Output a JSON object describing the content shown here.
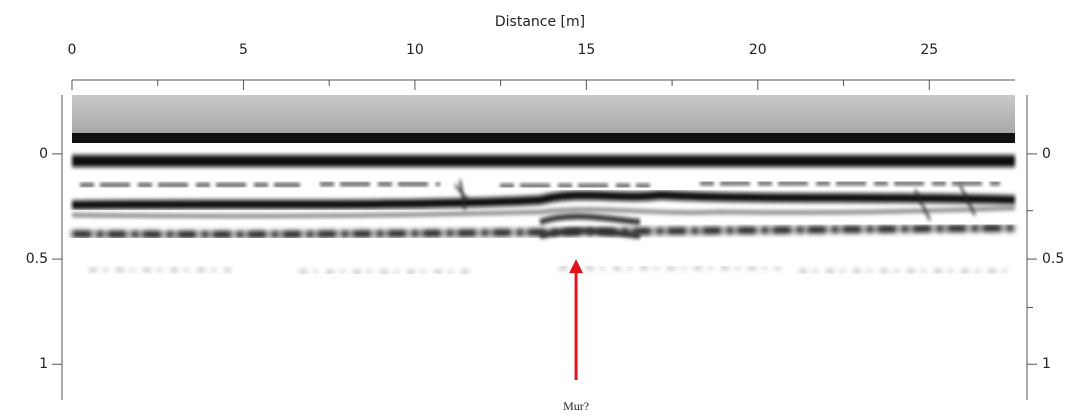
{
  "chart_data": {
    "type": "radargram",
    "xlabel": "Distance [m]",
    "xlim": [
      0,
      27.5
    ],
    "xticks": [
      0,
      5,
      10,
      15,
      20,
      25
    ],
    "xminorticks": [
      2.5,
      7.5,
      12.5,
      17.5,
      22.5
    ],
    "ylim": [
      -0.28,
      1.17
    ],
    "yticks": [
      0,
      0.5,
      1
    ],
    "y2lim": [
      -0.28,
      1.17
    ],
    "y2ticks": [
      0,
      0.5,
      1
    ],
    "y2minorticks": [
      0.27,
      0.73
    ],
    "annotation": {
      "text": "Mur?",
      "x": 14.7,
      "y": 0.5,
      "color": "#e0141e"
    }
  }
}
